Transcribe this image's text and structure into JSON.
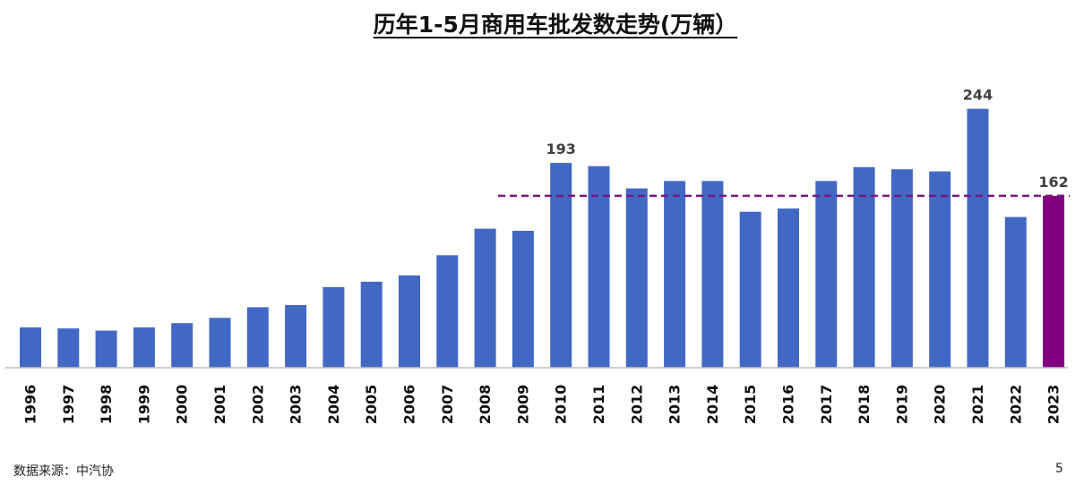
{
  "chart_data": {
    "type": "bar",
    "title": "历年1-5月商用车批发数走势(万辆）",
    "unit": "万辆",
    "categories": [
      "1996",
      "1997",
      "1998",
      "1999",
      "2000",
      "2001",
      "2002",
      "2003",
      "2004",
      "2005",
      "2006",
      "2007",
      "2008",
      "2009",
      "2010",
      "2011",
      "2012",
      "2013",
      "2014",
      "2015",
      "2016",
      "2017",
      "2018",
      "2019",
      "2020",
      "2021",
      "2022",
      "2023"
    ],
    "values": [
      38,
      37,
      35,
      38,
      42,
      47,
      57,
      59,
      76,
      81,
      87,
      106,
      131,
      129,
      193,
      190,
      169,
      176,
      176,
      147,
      150,
      176,
      189,
      187,
      185,
      244,
      142,
      162
    ],
    "data_labels": [
      {
        "category": "2010",
        "text": "193"
      },
      {
        "category": "2021",
        "text": "244"
      },
      {
        "category": "2023",
        "text": "162"
      }
    ],
    "reference_line": {
      "value": 162,
      "style": "dashed",
      "color": "#7b1680"
    },
    "highlight": {
      "category": "2023",
      "color": "#800080"
    },
    "bar_color": "#4169c4",
    "ylim": [
      0,
      250
    ],
    "xlabel": "",
    "ylabel": ""
  },
  "footer": {
    "source": "数据来源：中汽协",
    "page": "5"
  }
}
